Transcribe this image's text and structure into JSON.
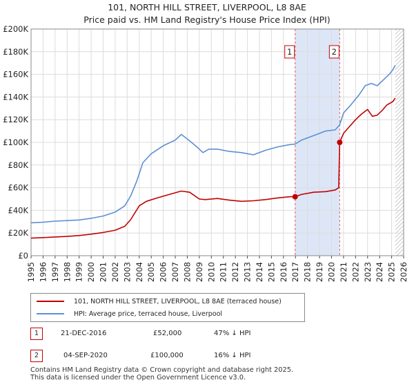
{
  "chart_data": {
    "type": "line",
    "title": "101, NORTH HILL STREET, LIVERPOOL, L8 8AE",
    "subtitle": "Price paid vs. HM Land Registry's House Price Index (HPI)",
    "xlim": [
      1995,
      2026
    ],
    "ylim": [
      0,
      200000
    ],
    "y_ticks": [
      0,
      20000,
      40000,
      60000,
      80000,
      100000,
      120000,
      140000,
      160000,
      180000,
      200000
    ],
    "y_tick_labels": [
      "£0",
      "£20K",
      "£40K",
      "£60K",
      "£80K",
      "£100K",
      "£120K",
      "£140K",
      "£160K",
      "£180K",
      "£200K"
    ],
    "x_ticks": [
      "1995",
      "1996",
      "1997",
      "1998",
      "1999",
      "2000",
      "2001",
      "2002",
      "2003",
      "2004",
      "2005",
      "2006",
      "2007",
      "2008",
      "2009",
      "2010",
      "2011",
      "2012",
      "2013",
      "2014",
      "2015",
      "2016",
      "2017",
      "2018",
      "2019",
      "2020",
      "2021",
      "2022",
      "2023",
      "2024",
      "2025",
      "2026"
    ],
    "series": [
      {
        "name": "101, NORTH HILL STREET, LIVERPOOL, L8 8AE (terraced house)",
        "color": "#c00000",
        "points": [
          [
            1995,
            15500
          ],
          [
            1996,
            16000
          ],
          [
            1997,
            16500
          ],
          [
            1998,
            17000
          ],
          [
            1999,
            17800
          ],
          [
            2000,
            19000
          ],
          [
            2001,
            20500
          ],
          [
            2002,
            22500
          ],
          [
            2002.8,
            26000
          ],
          [
            2003.3,
            32000
          ],
          [
            2004,
            44000
          ],
          [
            2004.6,
            48000
          ],
          [
            2005.5,
            51000
          ],
          [
            2006.5,
            54000
          ],
          [
            2007.5,
            57000
          ],
          [
            2008.2,
            56000
          ],
          [
            2009,
            50000
          ],
          [
            2009.5,
            49500
          ],
          [
            2010.5,
            50500
          ],
          [
            2011.5,
            49000
          ],
          [
            2012.5,
            48000
          ],
          [
            2013.5,
            48500
          ],
          [
            2014.5,
            49500
          ],
          [
            2015.5,
            51000
          ],
          [
            2016.5,
            52000
          ],
          [
            2016.97,
            52000
          ],
          [
            2017.5,
            54000
          ],
          [
            2018.5,
            56000
          ],
          [
            2019.5,
            56500
          ],
          [
            2020.3,
            58000
          ],
          [
            2020.6,
            60000
          ],
          [
            2020.68,
            100000
          ],
          [
            2021,
            108000
          ],
          [
            2021.5,
            114000
          ],
          [
            2022,
            120000
          ],
          [
            2022.5,
            125000
          ],
          [
            2023,
            129000
          ],
          [
            2023.4,
            123000
          ],
          [
            2023.8,
            124000
          ],
          [
            2024.2,
            128000
          ],
          [
            2024.6,
            133000
          ],
          [
            2025.1,
            136000
          ],
          [
            2025.3,
            139000
          ]
        ]
      },
      {
        "name": "HPI: Average price, terraced house, Liverpool",
        "color": "#5b8fd4",
        "points": [
          [
            1995,
            29000
          ],
          [
            1996,
            29500
          ],
          [
            1997,
            30500
          ],
          [
            1998,
            31000
          ],
          [
            1999,
            31500
          ],
          [
            2000,
            33000
          ],
          [
            2001,
            35000
          ],
          [
            2002,
            38500
          ],
          [
            2002.8,
            44000
          ],
          [
            2003.3,
            53000
          ],
          [
            2003.8,
            66000
          ],
          [
            2004.3,
            82000
          ],
          [
            2005,
            90000
          ],
          [
            2006,
            97000
          ],
          [
            2007,
            102000
          ],
          [
            2007.5,
            107000
          ],
          [
            2008,
            103000
          ],
          [
            2008.8,
            96000
          ],
          [
            2009.3,
            91000
          ],
          [
            2009.8,
            94000
          ],
          [
            2010.5,
            94000
          ],
          [
            2011.5,
            92000
          ],
          [
            2012.5,
            91000
          ],
          [
            2013.5,
            89000
          ],
          [
            2014.5,
            93000
          ],
          [
            2015.5,
            96000
          ],
          [
            2016.5,
            98000
          ],
          [
            2016.97,
            98500
          ],
          [
            2017.5,
            102000
          ],
          [
            2018.5,
            106000
          ],
          [
            2019.5,
            110000
          ],
          [
            2020.3,
            111000
          ],
          [
            2020.68,
            115500
          ],
          [
            2021,
            126000
          ],
          [
            2021.6,
            133000
          ],
          [
            2022.3,
            142000
          ],
          [
            2022.8,
            150000
          ],
          [
            2023.3,
            152000
          ],
          [
            2023.8,
            150000
          ],
          [
            2024.3,
            155000
          ],
          [
            2024.8,
            160000
          ],
          [
            2025.1,
            164000
          ],
          [
            2025.3,
            168000
          ]
        ]
      }
    ],
    "annotations": [
      {
        "label": "1",
        "x": 2016.97,
        "y": 52000
      },
      {
        "label": "2",
        "x": 2020.68,
        "y": 100000
      }
    ],
    "shade": {
      "from": 2016.97,
      "to": 2020.68,
      "color": "#dde6f7"
    },
    "hatch_from": 2025.3
  },
  "legend": [
    {
      "label": "101, NORTH HILL STREET, LIVERPOOL, L8 8AE (terraced house)",
      "color": "#c00000"
    },
    {
      "label": "HPI: Average price, terraced house, Liverpool",
      "color": "#5b8fd4"
    }
  ],
  "transactions": [
    {
      "num": "1",
      "date": "21-DEC-2016",
      "price": "£52,000",
      "hpi": "47% ↓ HPI"
    },
    {
      "num": "2",
      "date": "04-SEP-2020",
      "price": "£100,000",
      "hpi": "16% ↓ HPI"
    }
  ],
  "footer": {
    "line1": "Contains HM Land Registry data © Crown copyright and database right 2025.",
    "line2": "This data is licensed under the Open Government Licence v3.0."
  }
}
